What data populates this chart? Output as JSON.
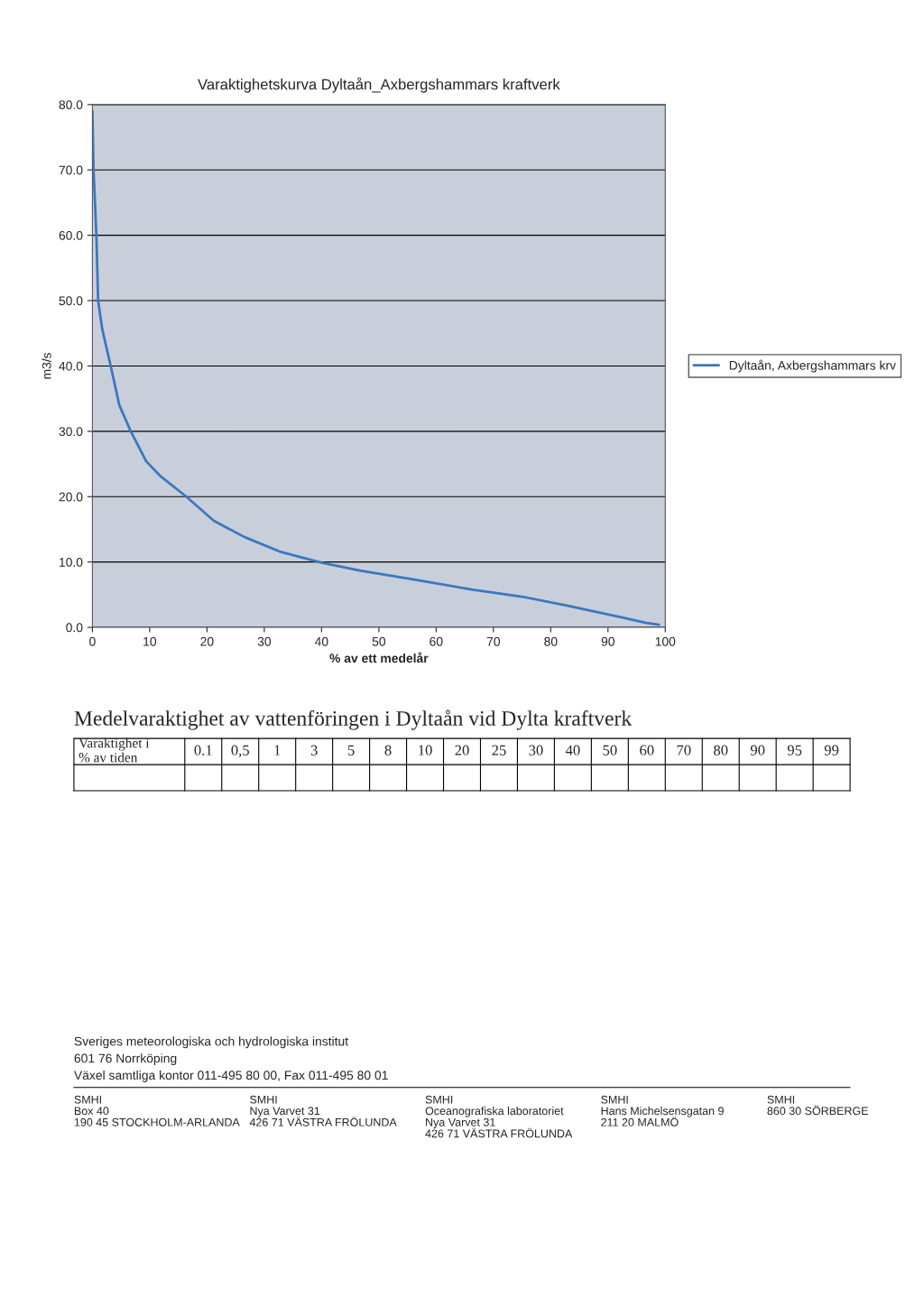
{
  "chart_data": {
    "type": "line",
    "title": "Varaktighetskurva Dyltaån_Axbergshammars kraftverk",
    "xlabel": "% av ett medelår",
    "ylabel": "m3/s",
    "series": [
      {
        "name": "Dyltaån, Axbergshammars krv",
        "color": "#3a78c0",
        "x": [
          0,
          0.2,
          0.7,
          1.0,
          1.7,
          3.2,
          4.7,
          6.7,
          9.4,
          11.8,
          16.4,
          21.2,
          26.6,
          32.7,
          40,
          46.7,
          56.2,
          66.2,
          75,
          83,
          92.5,
          96.5,
          98.9
        ],
        "values": [
          79,
          70,
          60,
          50,
          45.7,
          40,
          34,
          30,
          25.4,
          23.2,
          20,
          16.3,
          13.8,
          11.6,
          9.9,
          8.7,
          7.3,
          5.8,
          4.7,
          3.3,
          1.5,
          0.7,
          0.4
        ]
      }
    ],
    "xlim": [
      0,
      100
    ],
    "xticks": [
      0,
      10,
      20,
      30,
      40,
      50,
      60,
      70,
      80,
      90,
      100
    ],
    "ylim": [
      0,
      80
    ],
    "yticks": [
      {
        "value": 0,
        "label": "0.0"
      },
      {
        "value": 10,
        "label": "10.0"
      },
      {
        "value": 20,
        "label": "20.0"
      },
      {
        "value": 30,
        "label": "30.0"
      },
      {
        "value": 40,
        "label": "40.0"
      },
      {
        "value": 50,
        "label": "50.0"
      },
      {
        "value": 60,
        "label": "60.0"
      },
      {
        "value": 70,
        "label": "70.0"
      },
      {
        "value": 80,
        "label": "80.0"
      }
    ],
    "grid": "y",
    "legend": "right",
    "marker": "none",
    "line_style": "solid",
    "annotations": [
      "Medelvaraktighet av vattenföringen i Dyltaån vid Dylta kraftverk",
      "Varaktighet i\n% av tiden",
      "0.1",
      "0,5",
      "1",
      "3",
      "5",
      "8",
      "10",
      "20",
      "25",
      "30",
      "40",
      "50",
      "60",
      "70",
      "80",
      "90",
      "95",
      "99",
      "Sveriges meteorologiska och hydrologiska institut",
      "601 76 Norrköping",
      "Växel samtliga kontor 011-495 80 00, Fax 011-495 80 01",
      "SMHI\nBox 40\n190 45 STOCKHOLM-ARLANDA",
      "SMHI\nNya Varvet 31\n426 71 VÄSTRA FRÖLUNDA",
      "SMHI\nOceanografiska laboratoriet\nNya Varvet 31\n426 71 VÄSTRA FRÖLUNDA",
      "SMHI\nHans Michelsensgatan 9\n211 20 MALMÖ",
      "SMHI\n860 30 SÖRBERGE"
    ]
  }
}
